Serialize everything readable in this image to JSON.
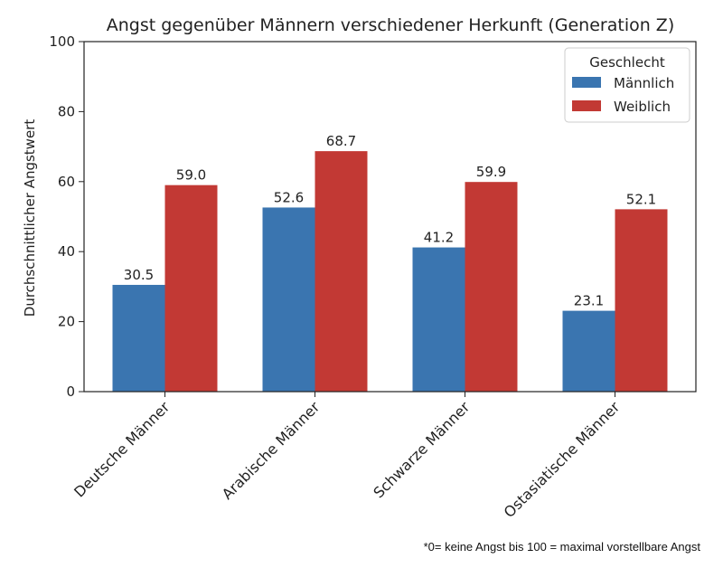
{
  "chart_data": {
    "type": "bar",
    "title": "Angst gegenüber Männern verschiedener Herkunft (Generation Z)",
    "xlabel": "",
    "ylabel": "Durchschnittlicher Angstwert",
    "ylim": [
      0,
      100
    ],
    "yticks": [
      0,
      20,
      40,
      60,
      80,
      100
    ],
    "categories": [
      "Deutsche Männer",
      "Arabische Männer",
      "Schwarze Männer",
      "Ostasiatische Männer"
    ],
    "series": [
      {
        "name": "Männlich",
        "color": "#3a75b0",
        "values": [
          30.5,
          52.6,
          41.2,
          23.1
        ]
      },
      {
        "name": "Weiblich",
        "color": "#c23934",
        "values": [
          59.0,
          68.7,
          59.9,
          52.1
        ]
      }
    ],
    "legend": {
      "title": "Geschlecht",
      "position": "top-right"
    },
    "grid": false
  },
  "footnote": "*0= keine Angst bis 100 = maximal vorstellbare Angst"
}
